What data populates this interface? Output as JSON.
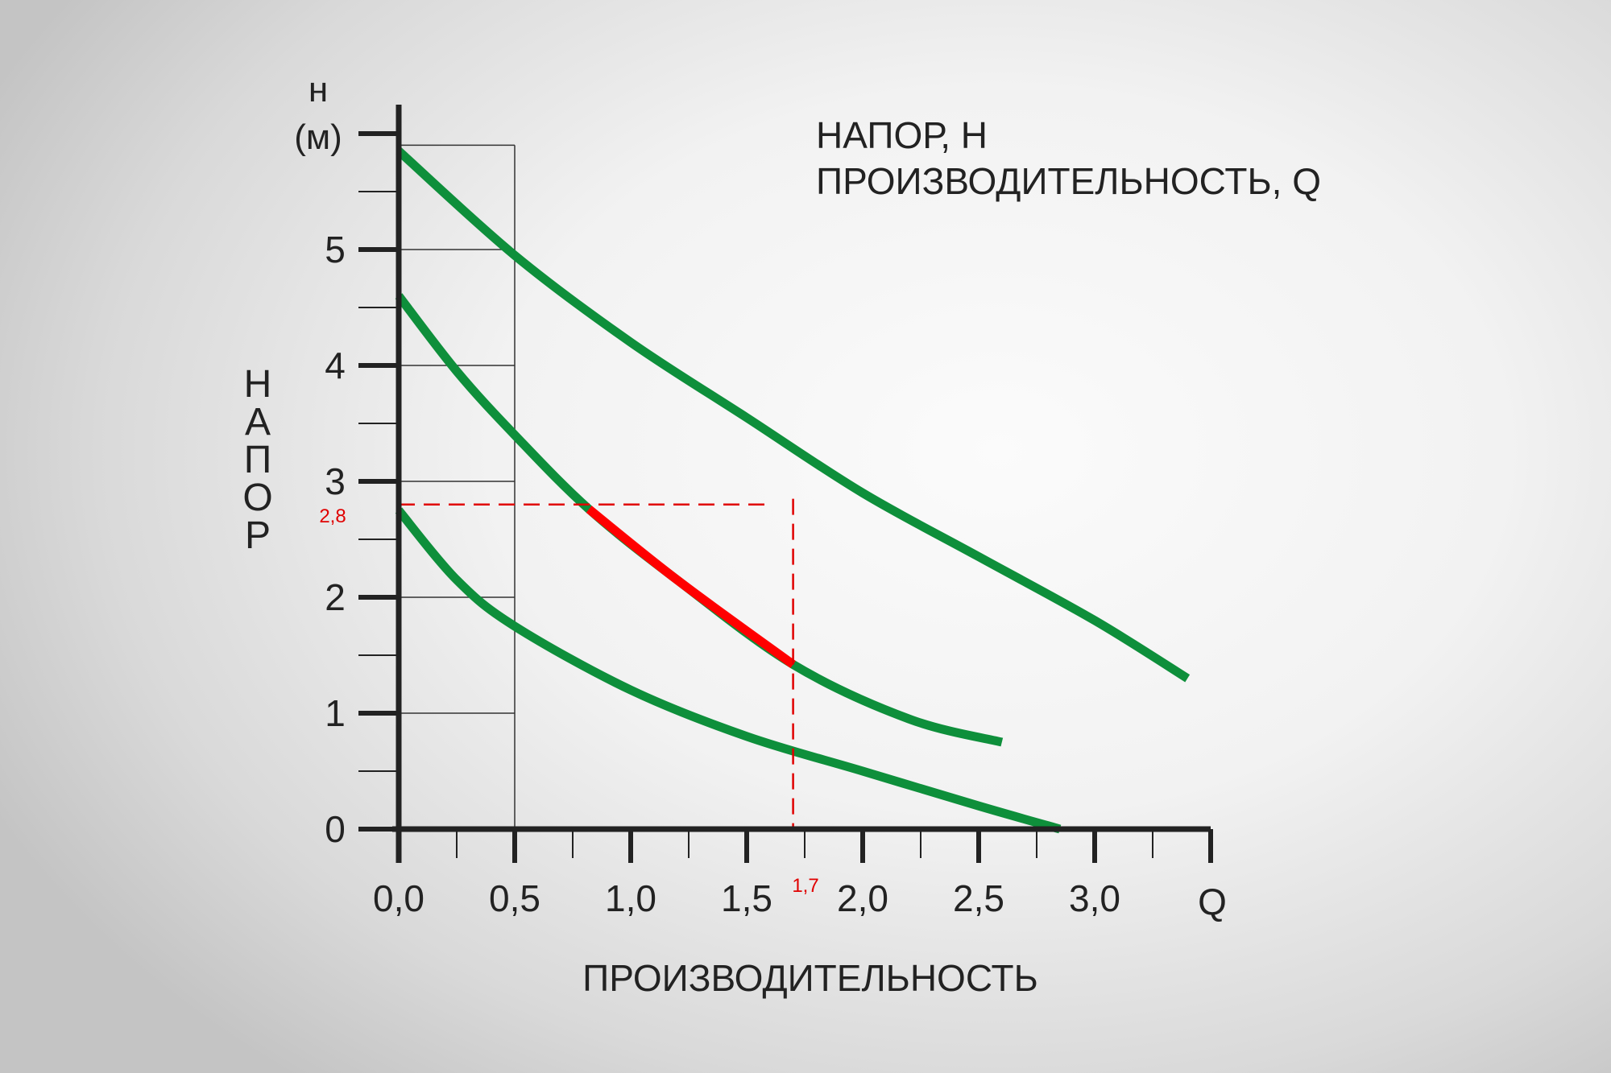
{
  "chart_data": {
    "type": "line",
    "title_lines": [
      "НАПОР, Н",
      "ПРОИЗВОДИТЕЛЬНОСТЬ, Q"
    ],
    "xlabel": "ПРОИЗВОДИТЕЛЬНОСТЬ",
    "ylabel": "НАПОР",
    "x_unit": "Q",
    "y_unit_symbol": "н",
    "y_unit": "(м)",
    "x_ticks": [
      "0,0",
      "0,5",
      "1,0",
      "1,5",
      "2,0",
      "2,5",
      "3,0"
    ],
    "y_ticks": [
      "0",
      "1",
      "2",
      "3",
      "4",
      "5"
    ],
    "xlim": [
      0,
      3.5
    ],
    "ylim": [
      0,
      6
    ],
    "grid": "partial",
    "series": [
      {
        "color": "#0e8f3b",
        "x": [
          0,
          0.5,
          1.0,
          1.5,
          2.0,
          2.5,
          3.0,
          3.4
        ],
        "y": [
          5.85,
          4.95,
          4.2,
          3.55,
          2.9,
          2.35,
          1.8,
          1.3
        ]
      },
      {
        "color": "#0e8f3b",
        "x": [
          0,
          0.25,
          0.5,
          0.82,
          1.2,
          1.7,
          2.2,
          2.6
        ],
        "y": [
          4.6,
          3.95,
          3.4,
          2.76,
          2.15,
          1.42,
          0.95,
          0.75
        ]
      },
      {
        "color": "#0e8f3b",
        "x": [
          0,
          0.25,
          0.5,
          1.0,
          1.5,
          2.0,
          2.5,
          2.85
        ],
        "y": [
          2.75,
          2.15,
          1.75,
          1.2,
          0.8,
          0.5,
          0.2,
          0.0
        ]
      }
    ],
    "highlight": {
      "color": "#ff0000",
      "x": [
        0.82,
        1.2,
        1.7
      ],
      "y": [
        2.76,
        2.15,
        1.42
      ]
    },
    "marker": {
      "x": 1.7,
      "y": 2.8,
      "x_label": "1,7",
      "y_label": "2,8",
      "color": "#e00000"
    }
  }
}
